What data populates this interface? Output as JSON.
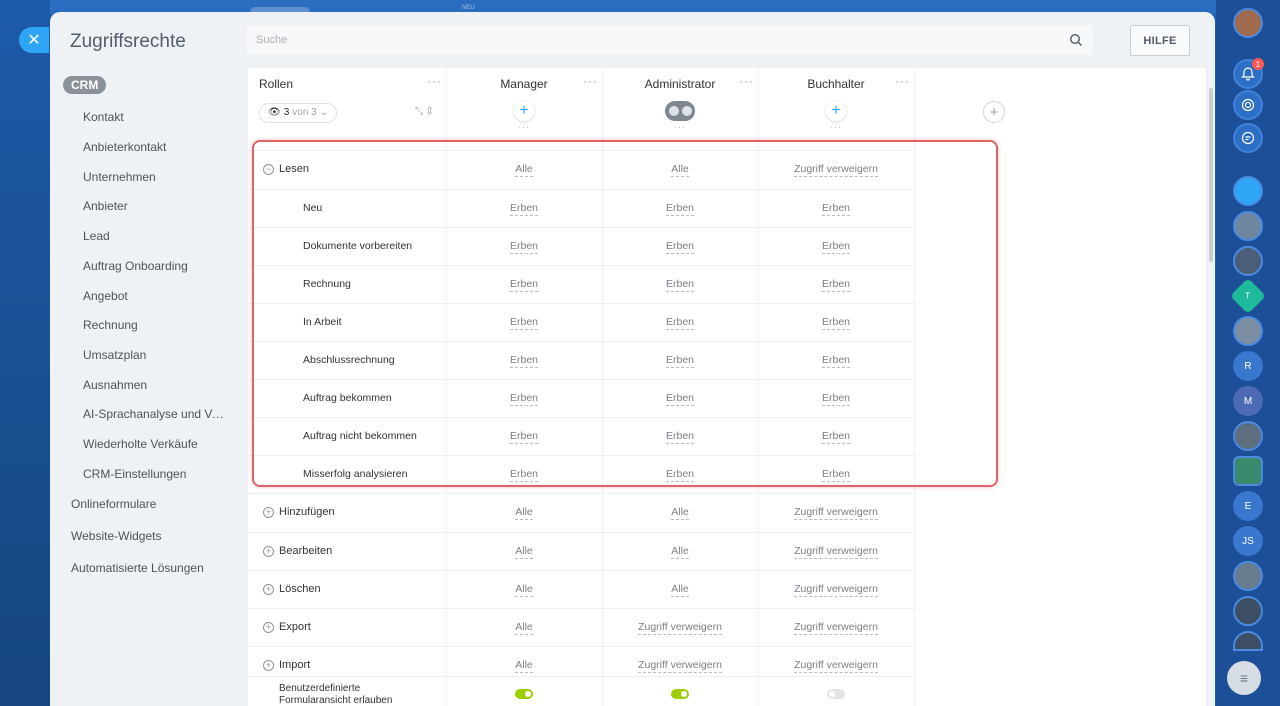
{
  "title": "Zugriffsrechte",
  "search": {
    "placeholder": "Suche"
  },
  "help_label": "HILFE",
  "background": {
    "top_label": "NEU"
  },
  "menu": {
    "crm": "CRM",
    "sub_items": [
      "Kontakt",
      "Anbieterkontakt",
      "Unternehmen",
      "Anbieter",
      "Lead",
      "Auftrag Onboarding",
      "Angebot",
      "Rechnung",
      "Umsatzplan",
      "Ausnahmen",
      "AI-Sprachanalyse und Ve...",
      "Wiederholte Verkäufe",
      "CRM-Einstellungen"
    ],
    "top_items": [
      "Onlineformulare",
      "Website-Widgets",
      "Automatisierte Lösungen"
    ]
  },
  "table": {
    "roles_header": "Rollen",
    "dots": "···",
    "filter": {
      "count": "3",
      "of": "von 3"
    },
    "roles": [
      "Manager",
      "Administrator",
      "Buchhalter"
    ],
    "rows": [
      {
        "label": "Lesen",
        "kind": "main",
        "expanded": true,
        "values": [
          "Alle",
          "Alle",
          "Zugriff verweigern"
        ]
      },
      {
        "label": "Neu",
        "kind": "sub",
        "values": [
          "Erben",
          "Erben",
          "Erben"
        ]
      },
      {
        "label": "Dokumente vorbereiten",
        "kind": "sub",
        "values": [
          "Erben",
          "Erben",
          "Erben"
        ]
      },
      {
        "label": "Rechnung",
        "kind": "sub",
        "values": [
          "Erben",
          "Erben",
          "Erben"
        ]
      },
      {
        "label": "In Arbeit",
        "kind": "sub",
        "values": [
          "Erben",
          "Erben",
          "Erben"
        ]
      },
      {
        "label": "Abschlussrechnung",
        "kind": "sub",
        "values": [
          "Erben",
          "Erben",
          "Erben"
        ]
      },
      {
        "label": "Auftrag bekommen",
        "kind": "sub",
        "values": [
          "Erben",
          "Erben",
          "Erben"
        ]
      },
      {
        "label": "Auftrag nicht bekommen",
        "kind": "sub",
        "values": [
          "Erben",
          "Erben",
          "Erben"
        ]
      },
      {
        "label": "Misserfolg analysieren",
        "kind": "sub",
        "values": [
          "Erben",
          "Erben",
          "Erben"
        ]
      },
      {
        "label": "Hinzufügen",
        "kind": "main",
        "expanded": false,
        "values": [
          "Alle",
          "Alle",
          "Zugriff verweigern"
        ]
      },
      {
        "label": "Bearbeiten",
        "kind": "main",
        "expanded": false,
        "values": [
          "Alle",
          "Alle",
          "Zugriff verweigern"
        ]
      },
      {
        "label": "Löschen",
        "kind": "main",
        "expanded": false,
        "values": [
          "Alle",
          "Alle",
          "Zugriff verweigern"
        ]
      },
      {
        "label": "Export",
        "kind": "main",
        "expanded": false,
        "values": [
          "Alle",
          "Zugriff verweigern",
          "Zugriff verweigern"
        ]
      },
      {
        "label": "Import",
        "kind": "main",
        "expanded": false,
        "values": [
          "Alle",
          "Zugriff verweigern",
          "Zugriff verweigern"
        ]
      }
    ],
    "last_row": {
      "label_line1": "Benutzerdefinierte",
      "label_line2": "Formularansicht erlauben",
      "toggles": [
        true,
        true,
        false
      ]
    }
  },
  "right_bar": {
    "bell_badge": "1",
    "letters": [
      "T",
      "R",
      "M",
      "E",
      "JS"
    ]
  },
  "colors": {
    "accent": "#2fa6f5",
    "highlight": "#e06467",
    "toggle_on": "#9dcf00"
  }
}
